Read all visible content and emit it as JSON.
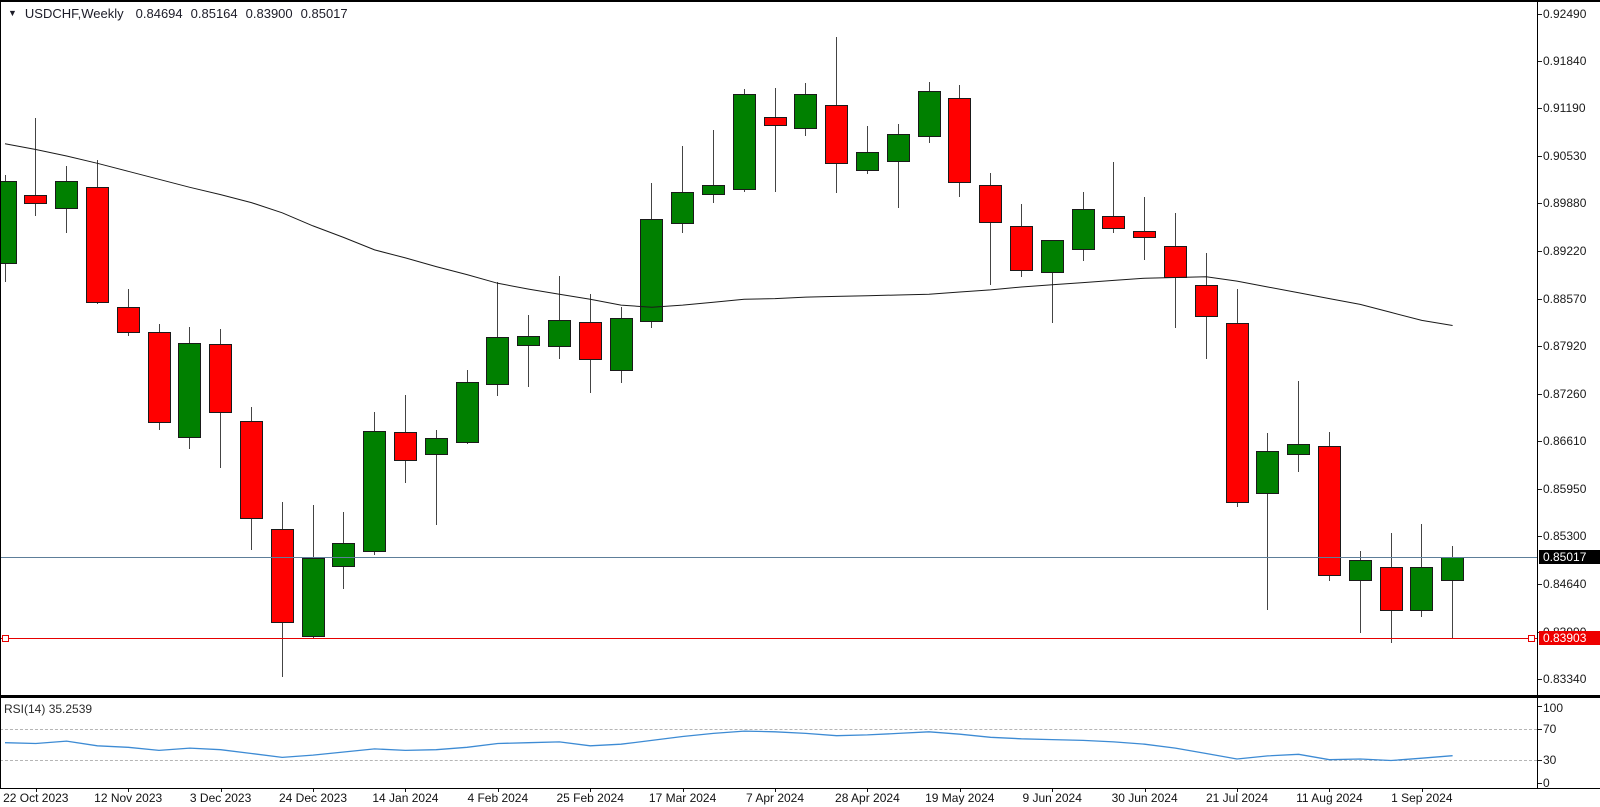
{
  "header": {
    "dropdown_icon": "▼",
    "symbol": "USDCHF,Weekly",
    "open": "0.84694",
    "high": "0.85164",
    "low": "0.83900",
    "close": "0.85017"
  },
  "colors": {
    "bull": "#008000",
    "bear": "#ff0000",
    "candle_border": "#1a1a1a",
    "wick": "#444444",
    "ma_line": "#1a1a1a",
    "current_price_line": "#5d7e99",
    "current_price_label_bg": "#000000",
    "hline": "#e60000",
    "hline_label_bg": "#ee0000",
    "rsi_line": "#3d8bd4",
    "axis_text": "#1a1a1a",
    "background": "#ffffff"
  },
  "price_axis": {
    "ticks": [
      "0.92490",
      "0.91840",
      "0.91190",
      "0.90530",
      "0.89880",
      "0.89220",
      "0.88570",
      "0.87920",
      "0.87260",
      "0.86610",
      "0.85950",
      "0.85300",
      "0.84640",
      "0.83990",
      "0.83340"
    ],
    "current_price": {
      "value": 0.85017,
      "label": "0.85017"
    },
    "hline": {
      "value": 0.83903,
      "label": "0.83903"
    }
  },
  "time_axis": {
    "labels": [
      {
        "i": 1,
        "text": "22 Oct 2023"
      },
      {
        "i": 4,
        "text": "12 Nov 2023"
      },
      {
        "i": 7,
        "text": "3 Dec 2023"
      },
      {
        "i": 10,
        "text": "24 Dec 2023"
      },
      {
        "i": 13,
        "text": "14 Jan 2024"
      },
      {
        "i": 16,
        "text": "4 Feb 2024"
      },
      {
        "i": 19,
        "text": "25 Feb 2024"
      },
      {
        "i": 22,
        "text": "17 Mar 2024"
      },
      {
        "i": 25,
        "text": "7 Apr 2024"
      },
      {
        "i": 28,
        "text": "28 Apr 2024"
      },
      {
        "i": 31,
        "text": "19 May 2024"
      },
      {
        "i": 34,
        "text": "9 Jun 2024"
      },
      {
        "i": 37,
        "text": "30 Jun 2024"
      },
      {
        "i": 40,
        "text": "21 Jul 2024"
      },
      {
        "i": 43,
        "text": "11 Aug 2024"
      },
      {
        "i": 46,
        "text": "1 Sep 2024"
      }
    ]
  },
  "chart_data": {
    "type": "candlestick",
    "symbol": "USDCHF",
    "timeframe": "Weekly",
    "ylim": [
      0.8334,
      0.9249
    ],
    "current_bar": {
      "open": 0.84694,
      "high": 0.85164,
      "low": 0.839,
      "close": 0.85017
    },
    "candles": [
      {
        "o": 0.8904,
        "h": 0.9027,
        "l": 0.888,
        "c": 0.9019
      },
      {
        "o": 0.8999,
        "h": 0.9105,
        "l": 0.8971,
        "c": 0.8987
      },
      {
        "o": 0.898,
        "h": 0.9039,
        "l": 0.8947,
        "c": 0.9019
      },
      {
        "o": 0.901,
        "h": 0.9047,
        "l": 0.8849,
        "c": 0.8851
      },
      {
        "o": 0.8845,
        "h": 0.887,
        "l": 0.8805,
        "c": 0.8809
      },
      {
        "o": 0.8811,
        "h": 0.8822,
        "l": 0.8676,
        "c": 0.8686
      },
      {
        "o": 0.8665,
        "h": 0.8818,
        "l": 0.865,
        "c": 0.8796
      },
      {
        "o": 0.8794,
        "h": 0.8815,
        "l": 0.8624,
        "c": 0.8699
      },
      {
        "o": 0.8689,
        "h": 0.8708,
        "l": 0.8512,
        "c": 0.8554
      },
      {
        "o": 0.854,
        "h": 0.8578,
        "l": 0.8337,
        "c": 0.8411
      },
      {
        "o": 0.8392,
        "h": 0.8573,
        "l": 0.839,
        "c": 0.85
      },
      {
        "o": 0.8488,
        "h": 0.8563,
        "l": 0.8457,
        "c": 0.8521
      },
      {
        "o": 0.8509,
        "h": 0.8701,
        "l": 0.8505,
        "c": 0.8675
      },
      {
        "o": 0.8674,
        "h": 0.8725,
        "l": 0.8603,
        "c": 0.8633
      },
      {
        "o": 0.8642,
        "h": 0.8676,
        "l": 0.8546,
        "c": 0.8665
      },
      {
        "o": 0.8659,
        "h": 0.8759,
        "l": 0.8657,
        "c": 0.8742
      },
      {
        "o": 0.8738,
        "h": 0.888,
        "l": 0.8723,
        "c": 0.8804
      },
      {
        "o": 0.8792,
        "h": 0.8834,
        "l": 0.8736,
        "c": 0.8806
      },
      {
        "o": 0.879,
        "h": 0.8888,
        "l": 0.8774,
        "c": 0.8827
      },
      {
        "o": 0.8825,
        "h": 0.8864,
        "l": 0.8727,
        "c": 0.8772
      },
      {
        "o": 0.8757,
        "h": 0.8846,
        "l": 0.8741,
        "c": 0.8831
      },
      {
        "o": 0.8825,
        "h": 0.9016,
        "l": 0.8816,
        "c": 0.8966
      },
      {
        "o": 0.8959,
        "h": 0.9067,
        "l": 0.8947,
        "c": 0.9004
      },
      {
        "o": 0.8999,
        "h": 0.9089,
        "l": 0.8988,
        "c": 0.9013
      },
      {
        "o": 0.9006,
        "h": 0.9145,
        "l": 0.9003,
        "c": 0.9138
      },
      {
        "o": 0.9107,
        "h": 0.9146,
        "l": 0.9004,
        "c": 0.9094
      },
      {
        "o": 0.909,
        "h": 0.9154,
        "l": 0.908,
        "c": 0.9138
      },
      {
        "o": 0.9123,
        "h": 0.9217,
        "l": 0.9002,
        "c": 0.9042
      },
      {
        "o": 0.9033,
        "h": 0.9094,
        "l": 0.9028,
        "c": 0.9058
      },
      {
        "o": 0.9045,
        "h": 0.9097,
        "l": 0.8982,
        "c": 0.9084
      },
      {
        "o": 0.9079,
        "h": 0.9155,
        "l": 0.9071,
        "c": 0.9142
      },
      {
        "o": 0.9133,
        "h": 0.9151,
        "l": 0.8997,
        "c": 0.9016
      },
      {
        "o": 0.9013,
        "h": 0.903,
        "l": 0.8876,
        "c": 0.8961
      },
      {
        "o": 0.8957,
        "h": 0.8987,
        "l": 0.8887,
        "c": 0.8895
      },
      {
        "o": 0.8892,
        "h": 0.8938,
        "l": 0.8823,
        "c": 0.8937
      },
      {
        "o": 0.8924,
        "h": 0.9004,
        "l": 0.8908,
        "c": 0.898
      },
      {
        "o": 0.897,
        "h": 0.9045,
        "l": 0.8947,
        "c": 0.8952
      },
      {
        "o": 0.895,
        "h": 0.8997,
        "l": 0.891,
        "c": 0.8941
      },
      {
        "o": 0.893,
        "h": 0.8975,
        "l": 0.8816,
        "c": 0.8885
      },
      {
        "o": 0.8876,
        "h": 0.892,
        "l": 0.8774,
        "c": 0.8832
      },
      {
        "o": 0.8824,
        "h": 0.887,
        "l": 0.8571,
        "c": 0.8576
      },
      {
        "o": 0.8588,
        "h": 0.8672,
        "l": 0.8429,
        "c": 0.8647
      },
      {
        "o": 0.8642,
        "h": 0.8744,
        "l": 0.8618,
        "c": 0.8657
      },
      {
        "o": 0.8655,
        "h": 0.8674,
        "l": 0.8469,
        "c": 0.8476
      },
      {
        "o": 0.8468,
        "h": 0.851,
        "l": 0.8397,
        "c": 0.8498
      },
      {
        "o": 0.8488,
        "h": 0.8535,
        "l": 0.8383,
        "c": 0.8428
      },
      {
        "o": 0.8428,
        "h": 0.8547,
        "l": 0.8419,
        "c": 0.8488
      },
      {
        "o": 0.84694,
        "h": 0.85164,
        "l": 0.839,
        "c": 0.85017
      }
    ],
    "ma": [
      0.907,
      0.9062,
      0.9053,
      0.9043,
      0.9032,
      0.9021,
      0.901,
      0.9,
      0.8989,
      0.8975,
      0.8957,
      0.8941,
      0.8924,
      0.8913,
      0.8901,
      0.889,
      0.8878,
      0.887,
      0.8863,
      0.8856,
      0.8848,
      0.8845,
      0.8848,
      0.8852,
      0.8856,
      0.8857,
      0.8859,
      0.886,
      0.8861,
      0.8862,
      0.8863,
      0.8866,
      0.8869,
      0.8873,
      0.8876,
      0.8879,
      0.8882,
      0.8885,
      0.8886,
      0.8887,
      0.8881,
      0.8873,
      0.8865,
      0.8857,
      0.8849,
      0.8838,
      0.8827,
      0.882
    ],
    "rsi": {
      "label": "RSI(14)",
      "value_text": "35.2539",
      "levels": [
        100,
        70,
        30,
        0
      ],
      "dashed_levels": [
        70,
        30
      ],
      "values": [
        52,
        51,
        54,
        48,
        46,
        42,
        45,
        43,
        38,
        33,
        36,
        40,
        44,
        42,
        43,
        46,
        51,
        52,
        53,
        48,
        50,
        55,
        60,
        64,
        67,
        66,
        64,
        61,
        62,
        64,
        66,
        63,
        59,
        57,
        56,
        55,
        53,
        50,
        45,
        38,
        31,
        35,
        37,
        30,
        31,
        29,
        32,
        35.25
      ]
    }
  }
}
